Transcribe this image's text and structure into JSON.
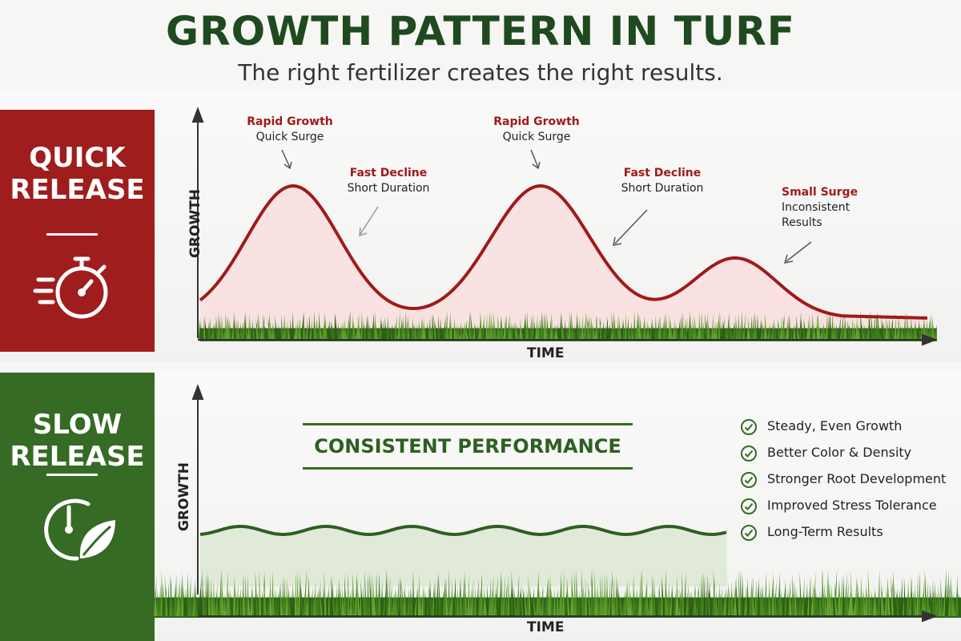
{
  "header": {
    "title": "GROWTH PATTERN IN TURF",
    "subtitle": "The right fertilizer creates the right results."
  },
  "quick_release": {
    "label_line1": "QUICK",
    "label_line2": "RELEASE",
    "icon": "stopwatch-icon",
    "accent": "#9f1d1d",
    "y_axis_label": "GROWTH",
    "x_axis_label": "TIME",
    "annotations": [
      {
        "title": "Rapid Growth",
        "text": "Quick Surge"
      },
      {
        "title": "Fast Decline",
        "text": "Short Duration"
      },
      {
        "title": "Rapid Growth",
        "text": "Quick Surge"
      },
      {
        "title": "Fast Decline",
        "text": "Short Duration"
      },
      {
        "title": "Small Surge",
        "text": "Inconsistent",
        "text2": "Results"
      }
    ]
  },
  "slow_release": {
    "label_line1": "SLOW",
    "label_line2": "RELEASE",
    "icon": "clock-leaf-icon",
    "accent": "#356b25",
    "y_axis_label": "GROWTH",
    "x_axis_label": "TIME",
    "banner": "CONSISTENT PERFORMANCE",
    "benefits": [
      "Steady, Even Growth",
      "Better Color & Density",
      "Stronger Root Development",
      "Improved Stress Tolerance",
      "Long-Term Results"
    ]
  }
}
